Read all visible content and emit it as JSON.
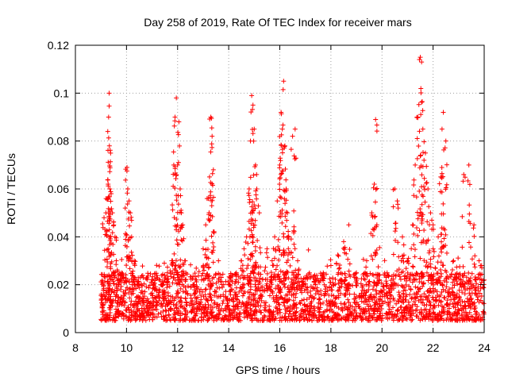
{
  "chart_data": {
    "type": "scatter",
    "title": "Day 258 of 2019, Rate Of TEC Index for receiver mars",
    "xlabel": "GPS time / hours",
    "ylabel": "ROTI / TECUs",
    "xlim": [
      8,
      24
    ],
    "ylim": [
      0,
      0.12
    ],
    "xticks": [
      8,
      10,
      12,
      14,
      16,
      18,
      20,
      22,
      24
    ],
    "xtick_labels": [
      "8",
      "10",
      "12",
      "14",
      "16",
      "18",
      "20",
      "22",
      "24"
    ],
    "yticks": [
      0,
      0.02,
      0.04,
      0.06,
      0.08,
      0.1,
      0.12
    ],
    "ytick_labels": [
      "0",
      "0.02",
      "0.04",
      "0.06",
      "0.08",
      "0.1",
      "0.12"
    ],
    "grid": true,
    "marker": "+",
    "color": "#ff0000",
    "time_range_hours": [
      9.0,
      24.0
    ],
    "dense_band": [
      0.005,
      0.025
    ],
    "series": [
      {
        "name": "ROTI",
        "x": [
          9.05,
          9.12,
          9.2,
          9.28,
          9.3,
          9.32,
          9.33,
          9.35,
          9.4,
          9.45,
          9.5,
          9.55,
          9.6,
          9.7,
          9.8,
          9.95,
          10.02,
          10.05,
          10.1,
          10.15,
          10.2,
          10.3,
          10.45,
          11.1,
          11.4,
          11.6,
          11.8,
          11.85,
          11.9,
          11.95,
          12.0,
          12.05,
          12.1,
          12.15,
          12.2,
          12.3,
          12.6,
          13.0,
          13.1,
          13.2,
          13.25,
          13.3,
          13.35,
          13.4,
          13.6,
          14.0,
          14.3,
          14.5,
          14.6,
          14.7,
          14.8,
          14.85,
          14.9,
          14.95,
          15.0,
          15.05,
          15.1,
          15.2,
          15.5,
          15.7,
          15.8,
          15.9,
          16.0,
          16.05,
          16.1,
          16.15,
          16.2,
          16.25,
          16.3,
          16.35,
          16.5,
          16.6,
          16.7,
          16.9,
          17.4,
          17.7,
          18.0,
          18.3,
          18.5,
          18.7,
          19.0,
          19.4,
          19.6,
          19.7,
          19.75,
          19.8,
          20.2,
          20.5,
          20.6,
          20.8,
          21.0,
          21.2,
          21.3,
          21.4,
          21.5,
          21.55,
          21.6,
          21.7,
          21.8,
          21.9,
          22.0,
          22.2,
          22.3,
          22.35,
          22.4,
          22.5,
          22.8,
          23.1,
          23.2,
          23.4,
          23.6,
          23.8,
          23.9
        ],
        "y": [
          0.015,
          0.048,
          0.056,
          0.062,
          0.09,
          0.1,
          0.078,
          0.06,
          0.058,
          0.05,
          0.045,
          0.04,
          0.03,
          0.022,
          0.025,
          0.052,
          0.069,
          0.06,
          0.055,
          0.05,
          0.04,
          0.03,
          0.02,
          0.018,
          0.02,
          0.025,
          0.03,
          0.07,
          0.09,
          0.098,
          0.07,
          0.088,
          0.06,
          0.05,
          0.045,
          0.03,
          0.02,
          0.035,
          0.045,
          0.056,
          0.065,
          0.09,
          0.082,
          0.068,
          0.03,
          0.02,
          0.025,
          0.03,
          0.035,
          0.04,
          0.06,
          0.08,
          0.099,
          0.095,
          0.085,
          0.07,
          0.06,
          0.05,
          0.035,
          0.03,
          0.04,
          0.055,
          0.07,
          0.092,
          0.085,
          0.105,
          0.078,
          0.06,
          0.05,
          0.04,
          0.082,
          0.085,
          0.03,
          0.02,
          0.022,
          0.025,
          0.028,
          0.032,
          0.038,
          0.045,
          0.025,
          0.03,
          0.05,
          0.062,
          0.089,
          0.045,
          0.025,
          0.06,
          0.055,
          0.04,
          0.03,
          0.045,
          0.07,
          0.09,
          0.115,
          0.113,
          0.085,
          0.075,
          0.06,
          0.05,
          0.045,
          0.04,
          0.065,
          0.085,
          0.092,
          0.08,
          0.03,
          0.02,
          0.066,
          0.07,
          0.045,
          0.03,
          0.028
        ]
      }
    ]
  }
}
